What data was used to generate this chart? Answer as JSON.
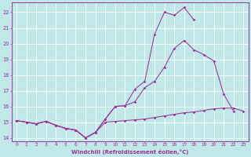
{
  "xlabel": "Windchill (Refroidissement éolien,°C)",
  "xlim": [
    -0.5,
    23.5
  ],
  "ylim": [
    13.8,
    22.6
  ],
  "yticks": [
    14,
    15,
    16,
    17,
    18,
    19,
    20,
    21,
    22
  ],
  "xticks": [
    0,
    1,
    2,
    3,
    4,
    5,
    6,
    7,
    8,
    9,
    10,
    11,
    12,
    13,
    14,
    15,
    16,
    17,
    18,
    19,
    20,
    21,
    22,
    23
  ],
  "bg_color": "#c0e8e8",
  "grid_color": "#ffffff",
  "line_color": "#993399",
  "line1_x": [
    0,
    1,
    2,
    3,
    4,
    5,
    6,
    7,
    8,
    9,
    10,
    11,
    12,
    13,
    14,
    15,
    16,
    17,
    18,
    19,
    20,
    21,
    22,
    23
  ],
  "line1_y": [
    15.1,
    15.0,
    14.9,
    15.05,
    14.8,
    14.6,
    14.5,
    14.0,
    14.35,
    15.0,
    15.05,
    15.1,
    15.15,
    15.2,
    15.3,
    15.4,
    15.5,
    15.6,
    15.65,
    15.75,
    15.85,
    15.9,
    15.9,
    15.7
  ],
  "line2_x": [
    0,
    1,
    2,
    3,
    4,
    5,
    6,
    7,
    8,
    9,
    10,
    11,
    12,
    13,
    14,
    15,
    16,
    17,
    18,
    19,
    20,
    21,
    22
  ],
  "line2_y": [
    15.1,
    15.0,
    14.9,
    15.05,
    14.8,
    14.6,
    14.5,
    14.0,
    14.35,
    15.2,
    16.0,
    16.05,
    16.3,
    17.2,
    17.6,
    18.5,
    19.7,
    20.2,
    19.6,
    19.3,
    18.9,
    16.8,
    15.7
  ],
  "line3_x": [
    0,
    1,
    2,
    3,
    4,
    5,
    6,
    7,
    8,
    9,
    10,
    11,
    12,
    13,
    14,
    15,
    16,
    17,
    18
  ],
  "line3_y": [
    15.1,
    15.0,
    14.9,
    15.05,
    14.8,
    14.6,
    14.5,
    14.0,
    14.35,
    15.2,
    16.0,
    16.05,
    17.1,
    17.6,
    20.6,
    22.0,
    21.8,
    22.3,
    21.5
  ]
}
